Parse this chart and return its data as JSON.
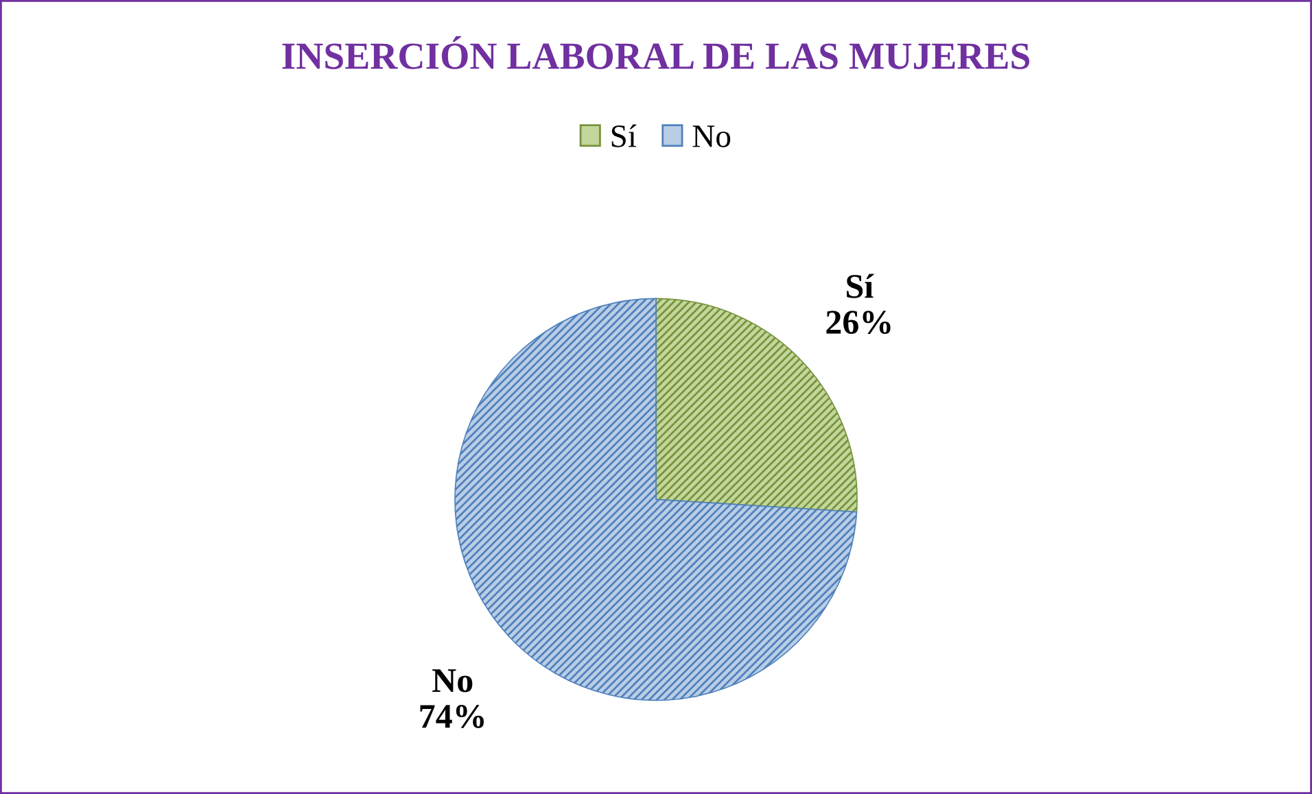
{
  "chart_data": {
    "type": "pie",
    "title": "INSERCIÓN LABORAL DE LAS MUJERES",
    "categories": [
      "Sí",
      "No"
    ],
    "values": [
      26,
      74
    ],
    "colors": [
      "#c3d69b",
      "#b9cde5"
    ],
    "value_labels": [
      "26%",
      "74%"
    ],
    "legend": "top"
  }
}
